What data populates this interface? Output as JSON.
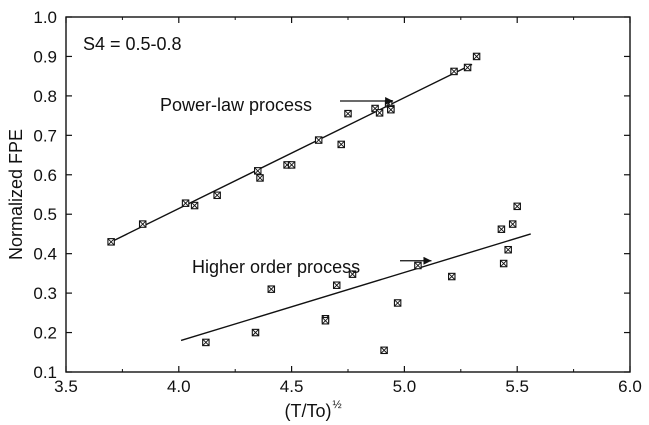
{
  "chart_data": {
    "type": "scatter",
    "xlabel": "(T/To)",
    "xlabel_superscript": "½",
    "ylabel": "Normalized FPE",
    "xlim": [
      3.5,
      6.0
    ],
    "ylim": [
      0.1,
      1.0
    ],
    "xticks": [
      "3.5",
      "4.0",
      "4.5",
      "5.0",
      "5.5",
      "6.0"
    ],
    "yticks": [
      "0.1",
      "0.2",
      "0.3",
      "0.4",
      "0.5",
      "0.6",
      "0.7",
      "0.8",
      "0.9",
      "1.0"
    ],
    "grid": false,
    "legend": "none",
    "marker": "boxed-x",
    "inset_label": "S4 = 0.5-0.8",
    "series": [
      {
        "points": [
          [
            3.7,
            0.43
          ],
          [
            3.84,
            0.475
          ],
          [
            4.03,
            0.528
          ],
          [
            4.07,
            0.522
          ],
          [
            4.17,
            0.548
          ],
          [
            4.35,
            0.61
          ],
          [
            4.36,
            0.592
          ],
          [
            4.48,
            0.625
          ],
          [
            4.5,
            0.625
          ],
          [
            4.62,
            0.688
          ],
          [
            4.72,
            0.677
          ],
          [
            4.75,
            0.755
          ],
          [
            4.87,
            0.768
          ],
          [
            4.89,
            0.757
          ],
          [
            4.93,
            0.78
          ],
          [
            4.94,
            0.768
          ],
          [
            4.94,
            0.765
          ],
          [
            5.22,
            0.862
          ],
          [
            5.28,
            0.872
          ],
          [
            5.32,
            0.9
          ]
        ],
        "fit": [
          [
            3.7,
            0.43
          ],
          [
            5.3,
            0.88
          ]
        ]
      },
      {
        "points": [
          [
            4.12,
            0.175
          ],
          [
            4.34,
            0.2
          ],
          [
            4.41,
            0.31
          ],
          [
            4.65,
            0.235
          ],
          [
            4.65,
            0.23
          ],
          [
            4.7,
            0.32
          ],
          [
            4.77,
            0.348
          ],
          [
            4.91,
            0.155
          ],
          [
            4.97,
            0.275
          ],
          [
            5.06,
            0.37
          ],
          [
            5.21,
            0.342
          ],
          [
            5.43,
            0.462
          ],
          [
            5.44,
            0.375
          ],
          [
            5.46,
            0.41
          ],
          [
            5.48,
            0.475
          ],
          [
            5.5,
            0.52
          ]
        ],
        "fit": [
          [
            4.01,
            0.18
          ],
          [
            5.56,
            0.45
          ]
        ]
      }
    ],
    "annotations": [
      {
        "text": "Power-law process",
        "arrow_to": [
          4.95,
          0.787
        ]
      },
      {
        "text": "Higher order process",
        "arrow_to": [
          5.12,
          0.382
        ]
      }
    ]
  }
}
